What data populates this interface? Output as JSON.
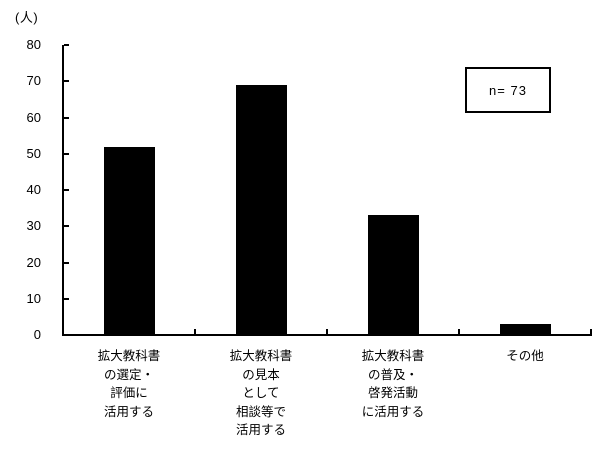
{
  "chart_data": {
    "type": "bar",
    "unit_label": "(人)",
    "categories": [
      "拡大教科書\nの選定・\n評価に\n活用する",
      "拡大教科書\nの見本\nとして\n相談等で\n活用する",
      "拡大教科書\nの普及・\n啓発活動\nに活用する",
      "その他"
    ],
    "values": [
      52,
      69,
      33,
      3
    ],
    "yticks": [
      0,
      10,
      20,
      30,
      40,
      50,
      60,
      70,
      80
    ],
    "ylim": [
      0,
      80
    ],
    "ytick_interval": 10,
    "bar_color": "#000000",
    "axis_color": "#000000",
    "annotation": "n= 73",
    "grid": false,
    "legend": "none"
  }
}
